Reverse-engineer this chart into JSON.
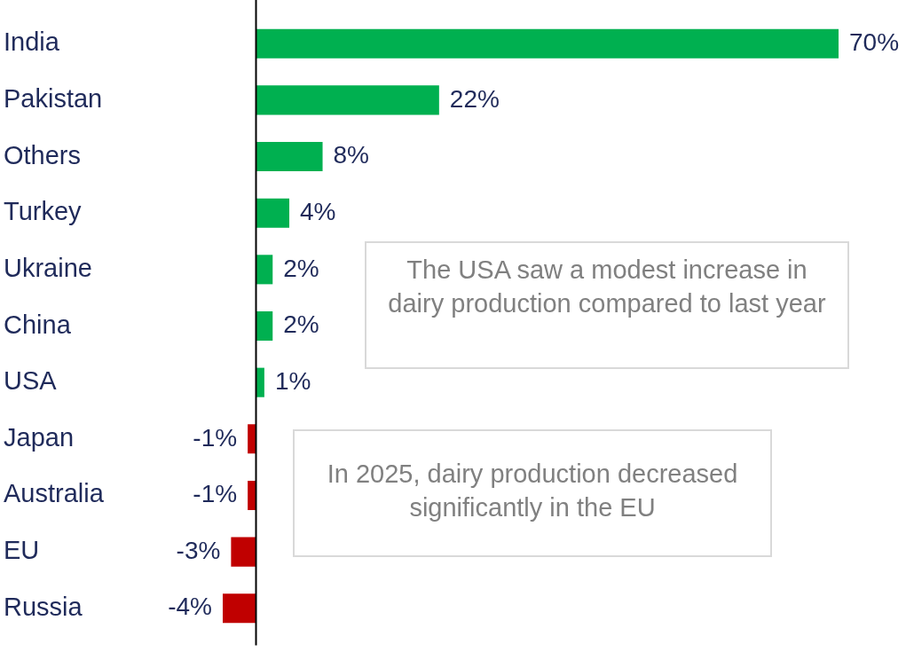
{
  "chart_data": {
    "type": "bar",
    "orientation": "horizontal",
    "categories": [
      "India",
      "Pakistan",
      "Others",
      "Turkey",
      "Ukraine",
      "China",
      "USA",
      "Japan",
      "Australia",
      "EU",
      "Russia"
    ],
    "values": [
      70,
      22,
      8,
      4,
      2,
      2,
      1,
      -1,
      -1,
      -3,
      -4
    ],
    "colors": [
      "#00b050",
      "#00b050",
      "#00b050",
      "#00b050",
      "#00b050",
      "#00b050",
      "#00b050",
      "#c00000",
      "#c00000",
      "#c00000",
      "#c00000"
    ],
    "value_labels": [
      "70%",
      "22%",
      "8%",
      "4%",
      "2%",
      "2%",
      "1%",
      "-1%",
      "-1%",
      "-3%",
      "-4%"
    ],
    "legend": false,
    "annotations": [
      "The USA saw a modest increase in dairy production compared to last year",
      "In 2025, dairy production decreased significantly in the EU"
    ]
  }
}
